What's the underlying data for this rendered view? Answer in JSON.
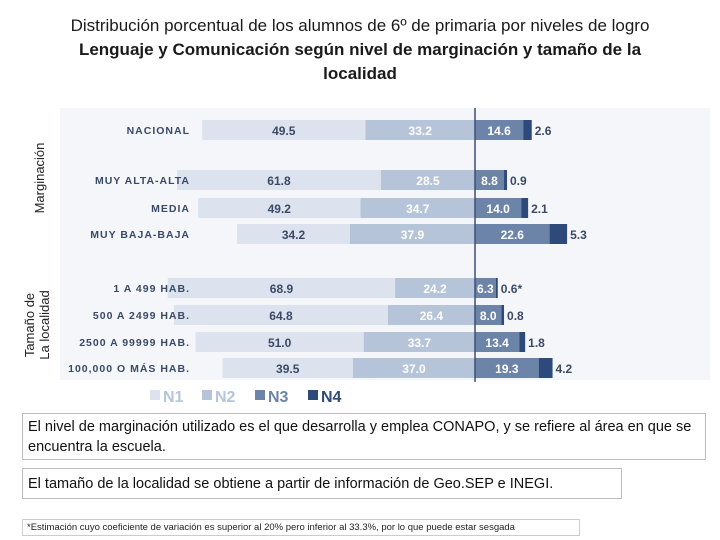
{
  "title": {
    "line1": "Distribución porcentual de los alumnos de 6º de primaria por niveles de logro",
    "line2": "Lenguaje y Comunicación según nivel de marginación y tamaño de la",
    "line3": "localidad"
  },
  "axis_groups": {
    "marginacion": "Marginación",
    "tamano_1": "Tamaño de",
    "tamano_2": "La localidad"
  },
  "notes": {
    "note1": "El nivel de marginación utilizado es el que desarrolla y emplea CONAPO, y se refiere al área en que se encuentra la escuela.",
    "note2": "El tamaño de la localidad se obtiene a partir de información de Geo.SEP e INEGI.",
    "footnote": "*Estimación cuyo coeficiente de variación es superior al 20% pero inferior al 33.3%, por lo que puede estar sesgada"
  },
  "colors": {
    "N1": "#dce3ee",
    "N2": "#b6c4d9",
    "N3": "#6c84a8",
    "N4": "#2e4a7a"
  },
  "chart_data": {
    "type": "bar",
    "orientation": "horizontal",
    "stacked": "diverging",
    "categories": [
      "NACIONAL",
      "MUY ALTA-ALTA",
      "MEDIA",
      "MUY BAJA-BAJA",
      "1 A 499 HAB.",
      "500 A 2499 HAB.",
      "2500 A 99999 HAB.",
      "100,000 O MÁS HAB."
    ],
    "groups": [
      {
        "name": "Marginación",
        "categories": [
          "MUY ALTA-ALTA",
          "MEDIA",
          "MUY BAJA-BAJA"
        ]
      },
      {
        "name": "Tamaño de La localidad",
        "categories": [
          "1 A 499 HAB.",
          "500 A 2499 HAB.",
          "2500 A 99999 HAB.",
          "100,000 O MÁS HAB."
        ]
      }
    ],
    "series": [
      {
        "name": "N1",
        "values": [
          49.5,
          61.8,
          49.2,
          34.2,
          68.9,
          64.8,
          51.0,
          39.5
        ]
      },
      {
        "name": "N2",
        "values": [
          33.2,
          28.5,
          34.7,
          37.9,
          24.2,
          26.4,
          33.7,
          37.0
        ]
      },
      {
        "name": "N3",
        "values": [
          14.6,
          8.8,
          14.0,
          22.6,
          6.3,
          8.0,
          13.4,
          19.3
        ]
      },
      {
        "name": "N4",
        "values": [
          2.6,
          0.9,
          2.1,
          5.3,
          0.6,
          0.8,
          1.8,
          4.2
        ]
      }
    ],
    "labels": {
      "N1": [
        "49.5",
        "61.8",
        "49.2",
        "34.2",
        "68.9",
        "64.8",
        "51.0",
        "39.5"
      ],
      "N2": [
        "33.2",
        "28.5",
        "34.7",
        "37.9",
        "24.2",
        "26.4",
        "33.7",
        "37.0"
      ],
      "N3": [
        "14.6",
        "8.8",
        "14.0",
        "22.6",
        "6.3",
        "8.0",
        "13.4",
        "19.3"
      ],
      "N4": [
        "2.6",
        "0.9",
        "2.1",
        "5.3",
        "0.6*",
        "0.8",
        "1.8",
        "4.2"
      ]
    },
    "legend": [
      "N1",
      "N2",
      "N3",
      "N4"
    ],
    "legend_position": "bottom",
    "grid": false
  }
}
